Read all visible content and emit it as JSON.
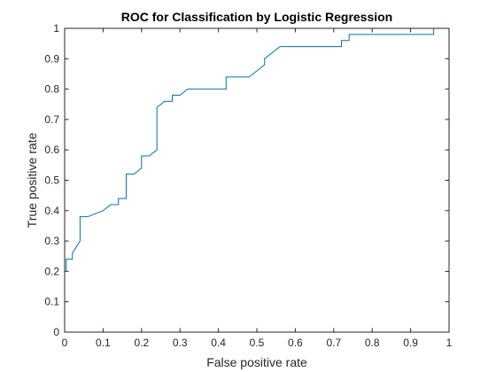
{
  "chart_data": {
    "type": "line",
    "title": "ROC for Classification by Logistic Regression",
    "xlabel": "False positive rate",
    "ylabel": "True positive rate",
    "xlim": [
      0,
      1
    ],
    "ylim": [
      0,
      1
    ],
    "grid": false,
    "x_ticks": [
      "0",
      "0.1",
      "0.2",
      "0.3",
      "0.4",
      "0.5",
      "0.6",
      "0.7",
      "0.8",
      "0.9",
      "1"
    ],
    "y_ticks": [
      "0",
      "0.1",
      "0.2",
      "0.3",
      "0.4",
      "0.5",
      "0.6",
      "0.7",
      "0.8",
      "0.9",
      "1"
    ],
    "line_color": "#0072bd",
    "series": [
      {
        "x": [
          0,
          0,
          0.004,
          0.004,
          0.02,
          0.02,
          0.04,
          0.04,
          0.06,
          0.1,
          0.12,
          0.14,
          0.14,
          0.16,
          0.16,
          0.18,
          0.2,
          0.2,
          0.22,
          0.24,
          0.24,
          0.26,
          0.28,
          0.28,
          0.3,
          0.32,
          0.42,
          0.42,
          0.48,
          0.52,
          0.52,
          0.56,
          0.72,
          0.72,
          0.74,
          0.74,
          0.96,
          0.96,
          1
        ],
        "y": [
          0,
          0.2,
          0.2,
          0.24,
          0.24,
          0.26,
          0.3,
          0.38,
          0.38,
          0.4,
          0.42,
          0.42,
          0.44,
          0.44,
          0.52,
          0.52,
          0.54,
          0.58,
          0.58,
          0.6,
          0.74,
          0.76,
          0.76,
          0.78,
          0.78,
          0.8,
          0.8,
          0.84,
          0.84,
          0.88,
          0.9,
          0.94,
          0.94,
          0.96,
          0.96,
          0.98,
          0.98,
          1,
          1
        ]
      }
    ]
  }
}
